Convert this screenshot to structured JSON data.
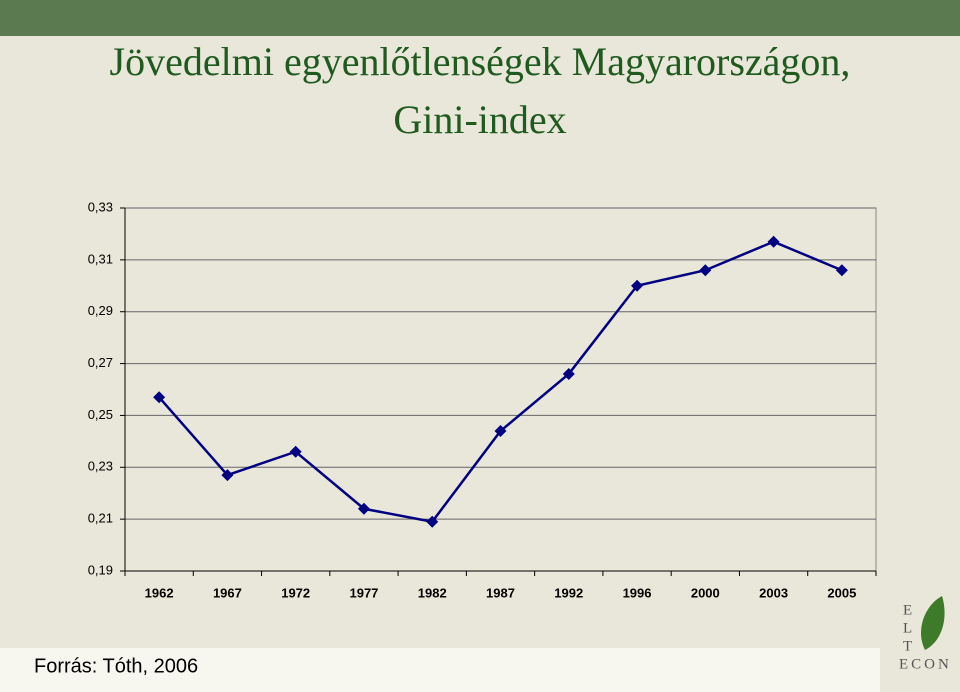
{
  "chart_data": {
    "type": "line",
    "title_lines": [
      "Jövedelmi egyenlőtlenségek Magyarországon,",
      "Gini-index"
    ],
    "categories": [
      "1962",
      "1967",
      "1972",
      "1977",
      "1982",
      "1987",
      "1992",
      "1996",
      "2000",
      "2003",
      "2005"
    ],
    "series": [
      {
        "color": "#000080",
        "values": [
          0.257,
          0.227,
          0.236,
          0.214,
          0.209,
          0.244,
          0.266,
          0.3,
          0.306,
          0.317,
          0.306
        ]
      }
    ],
    "ylim": [
      0.19,
      0.33
    ],
    "yticks": [
      {
        "value": 0.19,
        "label": "0,19"
      },
      {
        "value": 0.21,
        "label": "0,21"
      },
      {
        "value": 0.23,
        "label": "0,23"
      },
      {
        "value": 0.25,
        "label": "0,25"
      },
      {
        "value": 0.27,
        "label": "0,27"
      },
      {
        "value": 0.29,
        "label": "0,29"
      },
      {
        "value": 0.31,
        "label": "0,31"
      },
      {
        "value": 0.33,
        "label": "0,33"
      }
    ],
    "grid": true,
    "source": "Forrás: Tóth, 2006"
  },
  "logo": {
    "letters": [
      "E",
      "L",
      "T"
    ],
    "word": "ECON"
  }
}
